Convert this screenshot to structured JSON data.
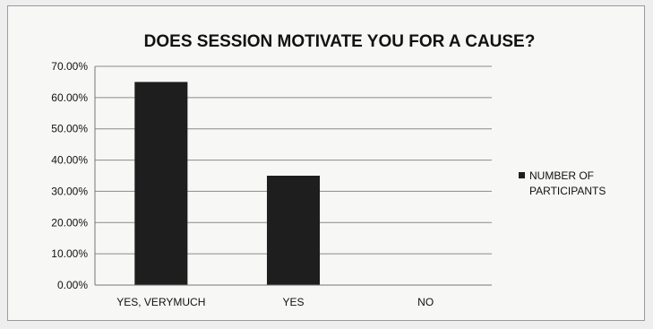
{
  "chart_data": {
    "type": "bar",
    "title": "DOES SESSION MOTIVATE YOU FOR A CAUSE?",
    "xlabel": "",
    "ylabel": "",
    "categories": [
      "YES, VERYMUCH",
      "YES",
      "NO"
    ],
    "series": [
      {
        "name": "NUMBER OF PARTICIPANTS",
        "values": [
          65.0,
          35.0,
          0.0
        ],
        "color": "#1e1e1e"
      }
    ],
    "ylim": [
      0,
      70
    ],
    "yticks": [
      "0.00%",
      "10.00%",
      "20.00%",
      "30.00%",
      "40.00%",
      "50.00%",
      "60.00%",
      "70.00%"
    ],
    "legend_lines": [
      "NUMBER OF",
      "PARTICIPANTS"
    ],
    "legend_position": "right",
    "grid": true
  }
}
